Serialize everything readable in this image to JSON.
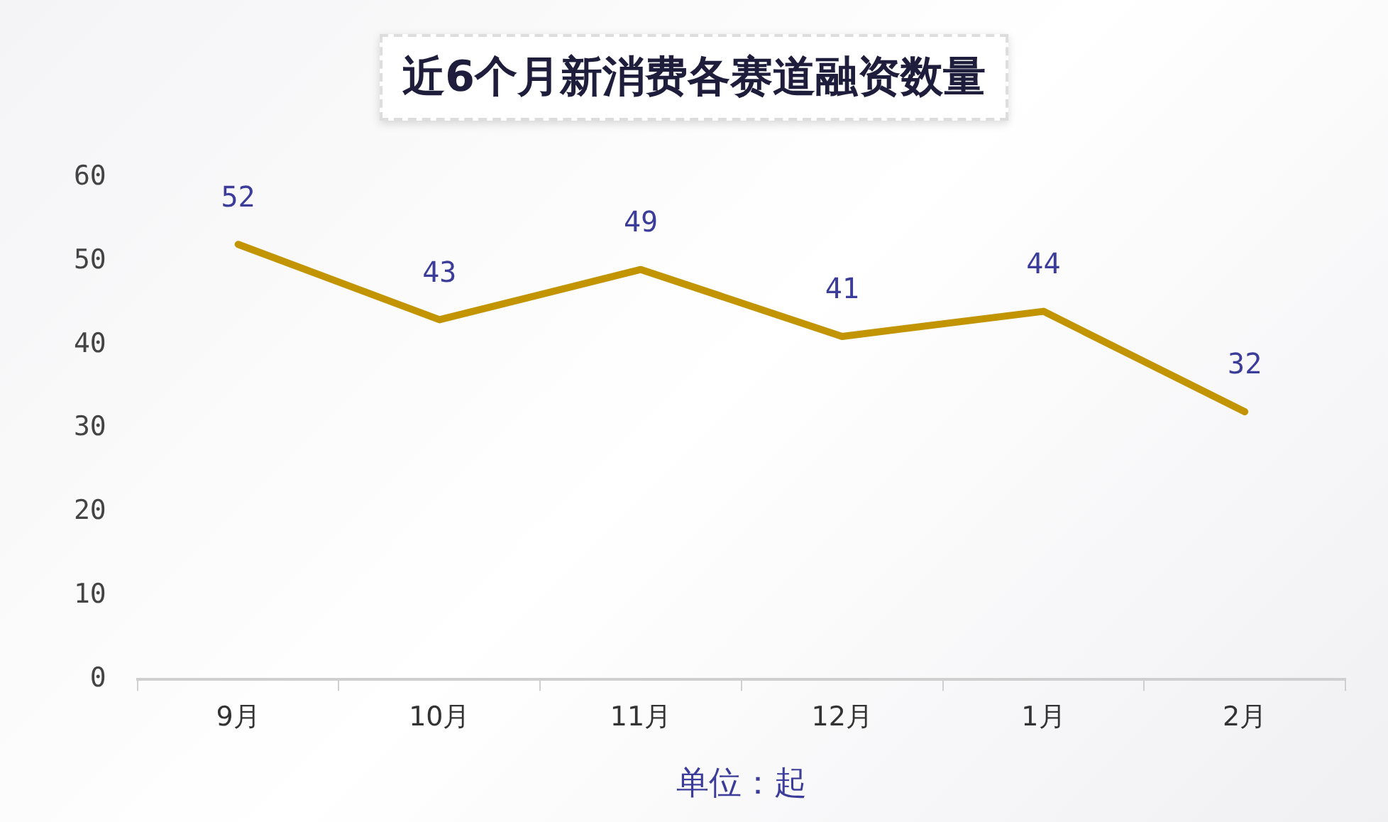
{
  "chart_data": {
    "type": "line",
    "title": "近6个月新消费各赛道融资数量",
    "xlabel": "单位：起",
    "categories": [
      "9月",
      "10月",
      "11月",
      "12月",
      "1月",
      "2月"
    ],
    "series": [
      {
        "color": "#c29500",
        "values": [
          52,
          43,
          49,
          41,
          44,
          32
        ]
      }
    ],
    "ylim": [
      0,
      60
    ],
    "yticks": [
      0,
      10,
      20,
      30,
      40,
      50,
      60
    ],
    "grid": false,
    "legend": false,
    "data_labels": true,
    "marker": "none",
    "line_style": "solid"
  }
}
